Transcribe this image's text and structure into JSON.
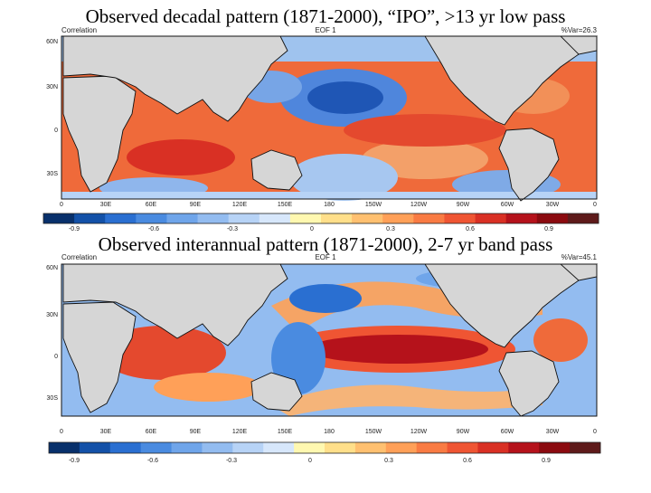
{
  "slide": {
    "title_top": "Observed decadal pattern (1871-2000), “IPO”, >13 yr low pass",
    "title_bottom": "Observed interannual pattern (1871-2000), 2-7 yr band pass"
  },
  "panels": [
    {
      "id": "decadal",
      "left_label": "Correlation",
      "center_label": "EOF 1",
      "right_label": "%Var=26.3",
      "lat_ticks": [
        "60N",
        "30N",
        "0",
        "30S"
      ],
      "lon_ticks": [
        "0",
        "30E",
        "60E",
        "90E",
        "120E",
        "150E",
        "180",
        "150W",
        "120W",
        "90W",
        "60W",
        "30W",
        "0"
      ],
      "colorbar_ticks": [
        "-0.9",
        "-0.6",
        "-0.3",
        "0",
        "0.3",
        "0.6",
        "0.9"
      ]
    },
    {
      "id": "interannual",
      "left_label": "Correlation",
      "center_label": "EOF 1",
      "right_label": "%Var=45.1",
      "lat_ticks": [
        "60N",
        "30N",
        "0",
        "30S"
      ],
      "lon_ticks": [
        "0",
        "30E",
        "60E",
        "90E",
        "120E",
        "150E",
        "180",
        "150W",
        "120W",
        "90W",
        "60W",
        "30W",
        "0"
      ],
      "colorbar_ticks": [
        "-0.9",
        "-0.6",
        "-0.3",
        "0",
        "0.3",
        "0.6",
        "0.9"
      ]
    }
  ],
  "colors": {
    "land": "#d6d6d6",
    "colorbar": [
      "#08306b",
      "#1351a8",
      "#2a6fd1",
      "#4a8be0",
      "#6fa5ea",
      "#93bcf0",
      "#b7d3f6",
      "#d7e7fb",
      "#fff8b0",
      "#ffdf8a",
      "#ffc070",
      "#ffa058",
      "#f97b43",
      "#ef5533",
      "#d93024",
      "#b5121b",
      "#8b0a0f",
      "#5e1a1a"
    ]
  }
}
